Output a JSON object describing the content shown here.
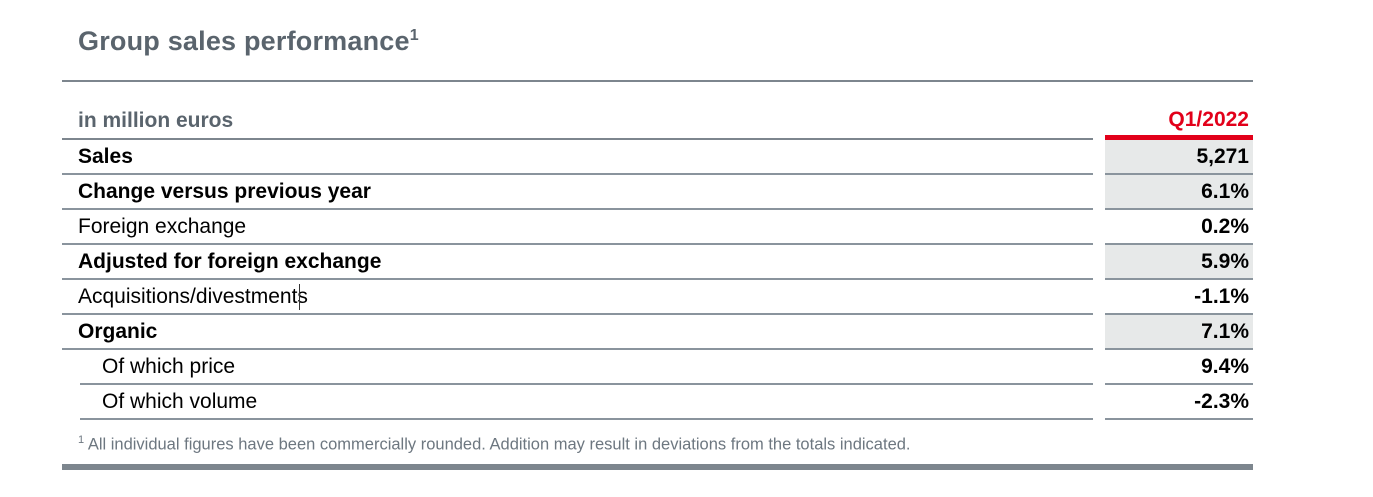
{
  "title": {
    "text": "Group sales performance",
    "footnote_ref": "1"
  },
  "table": {
    "unit_label": "in million euros",
    "column_header": "Q1/2022",
    "rows": [
      {
        "label": "Sales",
        "value": "5,271",
        "bold": true,
        "highlight": true,
        "indent": false,
        "caret": false
      },
      {
        "label": "Change versus previous year",
        "value": "6.1%",
        "bold": true,
        "highlight": true,
        "indent": false,
        "caret": false
      },
      {
        "label": "Foreign exchange",
        "value": "0.2%",
        "bold": false,
        "highlight": false,
        "indent": false,
        "caret": false
      },
      {
        "label": "Adjusted for foreign exchange",
        "value": "5.9%",
        "bold": true,
        "highlight": true,
        "indent": false,
        "caret": false
      },
      {
        "label": "Acquisitions/divestments",
        "value": "-1.1%",
        "bold": false,
        "highlight": false,
        "indent": false,
        "caret": true
      },
      {
        "label": "Organic",
        "value": "7.1%",
        "bold": true,
        "highlight": true,
        "indent": false,
        "caret": false
      },
      {
        "label": "Of which price",
        "value": "9.4%",
        "bold": false,
        "highlight": false,
        "indent": true,
        "caret": false
      },
      {
        "label": "Of which volume",
        "value": "-2.3%",
        "bold": false,
        "highlight": false,
        "indent": true,
        "caret": false
      }
    ]
  },
  "footnote": {
    "marker": "1",
    "text": "All individual figures have been commercially rounded. Addition may result in deviations from the totals indicated."
  },
  "colors": {
    "accent_red": "#e2001a",
    "heading_gray": "#5a646d",
    "row_highlight_gray": "#e7e9e9",
    "rule_gray": "#7d868e",
    "separator_gray": "#8a949d",
    "footnote_gray": "#6d7780"
  }
}
